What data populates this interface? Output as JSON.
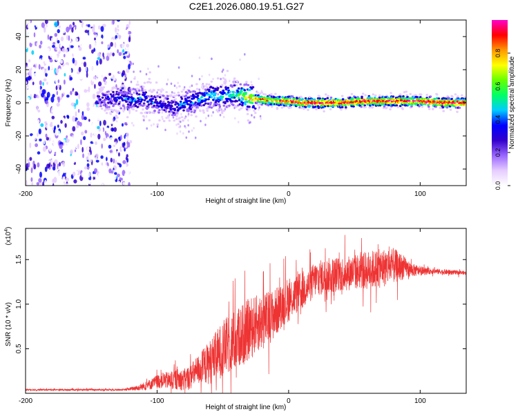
{
  "title": "C2E1.2026.080.19.51.G27",
  "colors": {
    "line": "#ee3333",
    "axis": "#000000",
    "colormap": [
      "#ffffff",
      "#e6ccff",
      "#9966ff",
      "#3300cc",
      "#0000ff",
      "#00ccff",
      "#00ff66",
      "#66ff00",
      "#ffff00",
      "#ff9900",
      "#ff0000",
      "#ff00cc"
    ]
  },
  "chart_data": [
    {
      "type": "heatmap",
      "name": "spectrogram",
      "xlabel": "Height of straight line (km)",
      "ylabel": "Frequency (Hz)",
      "xlim": [
        -200,
        135
      ],
      "ylim": [
        -50,
        50
      ],
      "xticks": [
        -200,
        -100,
        0,
        100
      ],
      "xtick_labels": [
        "-200",
        "-100",
        "0",
        "100"
      ],
      "yticks": [
        -40,
        -20,
        0,
        20,
        40
      ],
      "ytick_labels": [
        "-40",
        "-20",
        "0",
        "20",
        "40"
      ],
      "colorbar": {
        "label": "Normalized spectral amplitude",
        "range": [
          0,
          1
        ],
        "ticks": [
          0.0,
          0.2,
          0.4,
          0.6,
          0.8
        ],
        "tick_labels": [
          "0.0",
          "0.2",
          "0.4",
          "0.6",
          "0.8"
        ]
      },
      "ridge": {
        "x": [
          -145,
          -130,
          -120,
          -110,
          -100,
          -90,
          -80,
          -70,
          -60,
          -50,
          -40,
          -30,
          -20,
          -10,
          0,
          10,
          20,
          40,
          60,
          80,
          100,
          120,
          135
        ],
        "center_hz": [
          2,
          3,
          2,
          3,
          -1,
          -2,
          -1,
          2,
          4,
          4,
          5,
          3,
          2,
          1,
          1,
          0,
          0,
          0,
          1,
          1,
          1,
          0,
          0
        ],
        "amplitude": [
          0.25,
          0.35,
          0.4,
          0.4,
          0.35,
          0.35,
          0.4,
          0.45,
          0.5,
          0.5,
          0.55,
          0.75,
          0.85,
          0.85,
          0.9,
          0.95,
          0.95,
          0.95,
          0.95,
          0.95,
          0.95,
          0.95,
          0.95
        ]
      },
      "noise_region": {
        "x_start": -200,
        "x_end": -120,
        "level": 0.2
      }
    },
    {
      "type": "line",
      "name": "snr",
      "xlabel": "Height of straight line (km)",
      "ylabel": "SNR (10 * v/v)",
      "scale_label": "(x10",
      "scale_exponent": "4",
      "scale_suffix": ")",
      "xlim": [
        -200,
        135
      ],
      "ylim": [
        0,
        1.85
      ],
      "xticks": [
        -200,
        -100,
        0,
        100
      ],
      "xtick_labels": [
        "-200",
        "-100",
        "0",
        "100"
      ],
      "yticks": [
        0.5,
        1.0,
        1.5
      ],
      "ytick_labels": [
        "0.5",
        "1.0",
        "1.5"
      ],
      "series": [
        {
          "name": "SNR",
          "x": [
            -200,
            -180,
            -160,
            -140,
            -125,
            -115,
            -105,
            -100,
            -95,
            -90,
            -85,
            -80,
            -75,
            -70,
            -65,
            -60,
            -55,
            -50,
            -45,
            -40,
            -35,
            -30,
            -25,
            -20,
            -15,
            -10,
            -5,
            0,
            5,
            10,
            15,
            20,
            25,
            30,
            35,
            40,
            45,
            50,
            55,
            60,
            65,
            70,
            75,
            80,
            85,
            90,
            95,
            100,
            110,
            120,
            135
          ],
          "mean": [
            0.04,
            0.04,
            0.04,
            0.04,
            0.04,
            0.06,
            0.1,
            0.13,
            0.15,
            0.14,
            0.16,
            0.15,
            0.18,
            0.25,
            0.3,
            0.35,
            0.42,
            0.5,
            0.55,
            0.6,
            0.66,
            0.72,
            0.78,
            0.8,
            0.85,
            0.9,
            1.0,
            1.05,
            1.1,
            1.15,
            1.2,
            1.28,
            1.3,
            1.32,
            1.33,
            1.34,
            1.35,
            1.36,
            1.37,
            1.38,
            1.39,
            1.4,
            1.42,
            1.43,
            1.42,
            1.4,
            1.38,
            1.37,
            1.37,
            1.36,
            1.35
          ],
          "spread": [
            0.01,
            0.01,
            0.01,
            0.01,
            0.01,
            0.03,
            0.06,
            0.08,
            0.09,
            0.1,
            0.12,
            0.12,
            0.14,
            0.16,
            0.2,
            0.25,
            0.28,
            0.32,
            0.33,
            0.35,
            0.35,
            0.35,
            0.32,
            0.32,
            0.3,
            0.28,
            0.25,
            0.25,
            0.22,
            0.22,
            0.2,
            0.2,
            0.2,
            0.2,
            0.2,
            0.2,
            0.2,
            0.2,
            0.2,
            0.22,
            0.22,
            0.22,
            0.22,
            0.2,
            0.16,
            0.1,
            0.07,
            0.05,
            0.03,
            0.03,
            0.02
          ]
        }
      ]
    }
  ]
}
